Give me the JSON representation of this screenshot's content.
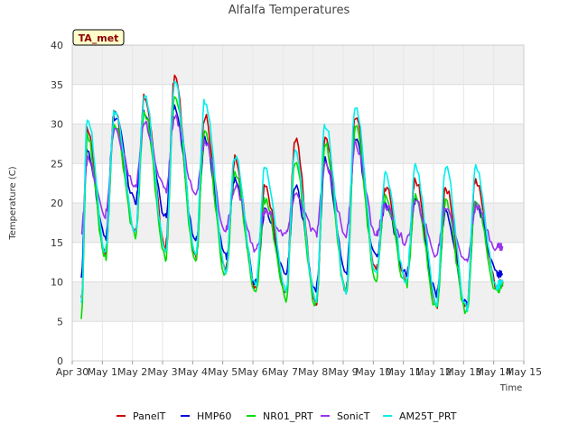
{
  "chart_data": {
    "type": "line",
    "title": "Alfalfa Temperatures",
    "xlabel": "Time",
    "ylabel": "Temperature (C)",
    "annotation": "TA_met",
    "xlim": [
      0,
      15
    ],
    "ylim": [
      0,
      40
    ],
    "x_ticks": [
      "Apr 30",
      "May 1",
      "May 2",
      "May 3",
      "May 4",
      "May 5",
      "May 6",
      "May 7",
      "May 8",
      "May 9",
      "May 10",
      "May 11",
      "May 12",
      "May 13",
      "May 14",
      "May 15"
    ],
    "y_ticks": [
      0,
      5,
      10,
      15,
      20,
      25,
      30,
      35,
      40
    ],
    "grid": true,
    "legend_position": "bottom",
    "daily_extremes_note": "per-day approximate min (early morning) and max (afternoon) values, x in days since Apr 30",
    "series": [
      {
        "name": "PanelT",
        "color": "#cc0000",
        "x": [
          0.3,
          0.5,
          1.1,
          1.4,
          2.1,
          2.4,
          3.1,
          3.4,
          4.1,
          4.4,
          5.1,
          5.4,
          6.1,
          6.4,
          7.1,
          7.4,
          8.1,
          8.4,
          9.1,
          9.4,
          10.1,
          10.4,
          11.1,
          11.4,
          12.1,
          12.4,
          13.1,
          13.4,
          14.1,
          14.3
        ],
        "y": [
          7.5,
          29.5,
          13.5,
          31.5,
          16.5,
          33.5,
          14.5,
          36.0,
          13.0,
          31.0,
          11.5,
          25.5,
          9.0,
          22.0,
          8.5,
          28.0,
          7.0,
          28.5,
          9.0,
          31.0,
          11.5,
          22.0,
          10.0,
          23.0,
          7.0,
          22.0,
          6.5,
          23.0,
          9.5,
          10.0
        ]
      },
      {
        "name": "HMP60",
        "color": "#0000dd",
        "x": [
          0.3,
          0.5,
          1.1,
          1.4,
          2.1,
          2.4,
          3.1,
          3.4,
          4.1,
          4.4,
          5.1,
          5.4,
          6.1,
          6.4,
          7.1,
          7.4,
          8.1,
          8.4,
          9.1,
          9.4,
          10.1,
          10.4,
          11.1,
          11.4,
          12.1,
          12.4,
          13.1,
          13.4,
          14.1,
          14.3
        ],
        "y": [
          11.0,
          26.5,
          15.5,
          31.0,
          20.0,
          31.5,
          18.5,
          32.0,
          15.0,
          28.0,
          13.0,
          23.0,
          10.0,
          19.0,
          11.0,
          22.0,
          9.0,
          25.5,
          11.0,
          28.0,
          13.0,
          20.0,
          11.0,
          20.5,
          8.5,
          19.0,
          7.0,
          20.0,
          11.0,
          11.0
        ]
      },
      {
        "name": "NR01_PRT",
        "color": "#00dd00",
        "x": [
          0.3,
          0.5,
          1.1,
          1.4,
          2.1,
          2.4,
          3.1,
          3.4,
          4.1,
          4.4,
          5.1,
          5.4,
          6.1,
          6.4,
          7.1,
          7.4,
          8.1,
          8.4,
          9.1,
          9.4,
          10.1,
          10.4,
          11.1,
          11.4,
          12.1,
          12.4,
          13.1,
          13.4,
          14.1,
          14.3
        ],
        "y": [
          5.5,
          28.5,
          13.0,
          30.0,
          16.0,
          31.5,
          13.0,
          34.0,
          12.5,
          29.0,
          11.0,
          24.0,
          8.5,
          20.5,
          8.0,
          25.0,
          7.0,
          27.5,
          8.5,
          29.5,
          10.5,
          20.5,
          9.5,
          21.0,
          6.5,
          20.0,
          6.0,
          20.5,
          9.0,
          9.5
        ]
      },
      {
        "name": "SonicT",
        "color": "#9933ee",
        "x": [
          0.3,
          0.5,
          1.1,
          1.4,
          2.1,
          2.4,
          3.1,
          3.4,
          4.1,
          4.4,
          5.1,
          5.4,
          6.1,
          6.4,
          7.1,
          7.4,
          8.1,
          8.4,
          9.1,
          9.4,
          10.1,
          10.4,
          11.1,
          11.4,
          12.1,
          12.4,
          13.1,
          13.4,
          14.1,
          14.3
        ],
        "y": [
          16.0,
          25.5,
          18.5,
          29.0,
          22.0,
          30.0,
          21.5,
          31.0,
          21.0,
          28.0,
          16.5,
          22.0,
          14.0,
          19.0,
          16.0,
          21.0,
          16.0,
          25.0,
          16.0,
          27.5,
          16.0,
          19.5,
          15.0,
          20.0,
          13.5,
          19.5,
          12.5,
          19.5,
          14.5,
          14.5
        ]
      },
      {
        "name": "AM25T_PRT",
        "color": "#00eeee",
        "x": [
          0.3,
          0.5,
          1.1,
          1.4,
          2.1,
          2.4,
          3.1,
          3.4,
          4.1,
          4.4,
          5.1,
          5.4,
          6.1,
          6.4,
          7.1,
          7.4,
          8.1,
          8.4,
          9.1,
          9.4,
          10.1,
          10.4,
          11.1,
          11.4,
          12.1,
          12.4,
          13.1,
          13.4,
          14.1,
          14.3
        ],
        "y": [
          7.0,
          31.0,
          14.0,
          31.5,
          16.5,
          33.5,
          14.0,
          35.5,
          13.5,
          33.0,
          11.5,
          26.0,
          9.5,
          24.5,
          9.0,
          26.5,
          7.5,
          30.0,
          8.5,
          32.5,
          11.0,
          23.5,
          10.0,
          24.5,
          7.5,
          24.5,
          6.5,
          24.5,
          9.5,
          10.0
        ]
      }
    ]
  }
}
